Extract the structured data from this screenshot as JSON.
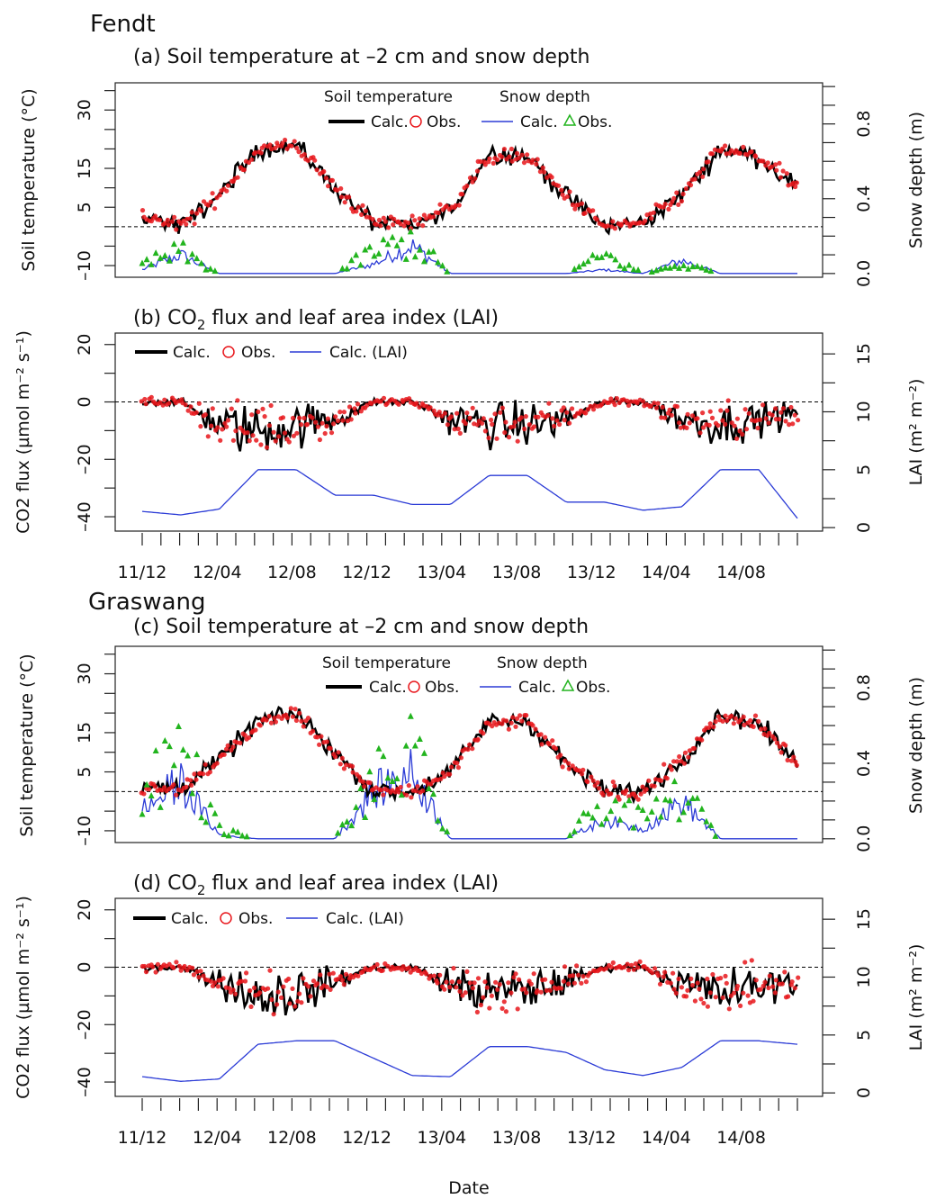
{
  "figure": {
    "xlabel": "Date",
    "x_ticks": [
      "11/12",
      "12/04",
      "12/08",
      "12/12",
      "13/04",
      "13/08",
      "13/12",
      "14/04",
      "14/08"
    ],
    "x_range": [
      "2011-12",
      "2014-11"
    ]
  },
  "colors": {
    "calc": "#000000",
    "obs_temp": "#e8161b",
    "snow_calc": "#2b3bd6",
    "snow_obs": "#22b41e",
    "lai": "#2b3bd6",
    "zero_line": "#000000"
  },
  "panels": [
    {
      "site": "Fendt",
      "title": "(a) Soil temperature at –2 cm and snow depth",
      "ylabel_left": "Soil temperature (°C)",
      "ylabel_right": "Snow depth (m)",
      "left_ticks": [
        "–10",
        "5",
        "15",
        "30"
      ],
      "right_ticks": [
        "0.0",
        "0.4",
        "0.8"
      ],
      "legend": {
        "h1": "Soil temperature",
        "h2": "Snow depth",
        "calc": "Calc.",
        "obs": "Obs.",
        "calc2": "Calc.",
        "obs2": "Obs."
      }
    },
    {
      "site": "",
      "title": "(b) CO",
      "title_sub": "2",
      "title_rest": " flux and leaf area index (LAI)",
      "ylabel_left": "CO2 flux (µmol m⁻² s⁻¹)",
      "ylabel_right": "LAI (m² m⁻²)",
      "left_ticks": [
        "–40",
        "–20",
        "0",
        "20"
      ],
      "right_ticks": [
        "0",
        "5",
        "10",
        "15"
      ],
      "legend": {
        "calc": "Calc.",
        "obs": "Obs.",
        "lai": "Calc. (LAI)"
      }
    },
    {
      "site": "Graswang",
      "title": "(c) Soil temperature at –2 cm and snow depth",
      "ylabel_left": "Soil temperature (°C)",
      "ylabel_right": "Snow depth (m)",
      "left_ticks": [
        "–10",
        "5",
        "15",
        "30"
      ],
      "right_ticks": [
        "0.0",
        "0.4",
        "0.8"
      ],
      "legend": {
        "h1": "Soil temperature",
        "h2": "Snow depth",
        "calc": "Calc.",
        "obs": "Obs.",
        "calc2": "Calc.",
        "obs2": "Obs."
      }
    },
    {
      "site": "",
      "title": "(d) CO",
      "title_sub": "2",
      "title_rest": " flux and leaf area index (LAI)",
      "ylabel_left": "CO2 flux (µmol m⁻² s⁻¹)",
      "ylabel_right": "LAI (m² m⁻²)",
      "left_ticks": [
        "–40",
        "–20",
        "0",
        "20"
      ],
      "right_ticks": [
        "0",
        "5",
        "10",
        "15"
      ],
      "legend": {
        "calc": "Calc.",
        "obs": "Obs.",
        "lai": "Calc. (LAI)"
      }
    }
  ],
  "chart_data": [
    {
      "type": "line",
      "title": "(a) Soil temperature at –2 cm and snow depth",
      "site": "Fendt",
      "x": [
        "2011-12",
        "2012-02",
        "2012-04",
        "2012-06",
        "2012-08",
        "2012-10",
        "2012-12",
        "2013-02",
        "2013-04",
        "2013-06",
        "2013-08",
        "2013-10",
        "2013-12",
        "2014-02",
        "2014-04",
        "2014-06",
        "2014-08",
        "2014-10"
      ],
      "ylim_left": [
        -10,
        35
      ],
      "ylim_right": [
        0,
        1.0
      ],
      "series": [
        {
          "name": "Soil temperature Calc.",
          "axis": "left",
          "values": [
            3,
            0,
            8,
            20,
            21,
            10,
            1,
            0,
            4,
            19,
            18,
            8,
            0,
            1,
            8,
            20,
            18,
            10
          ]
        },
        {
          "name": "Soil temperature Obs.",
          "axis": "left",
          "values": [
            3,
            0,
            8,
            20,
            21,
            10,
            1,
            1,
            5,
            18,
            18,
            8,
            0,
            1,
            8,
            20,
            18,
            10
          ]
        },
        {
          "name": "Snow depth Calc.",
          "axis": "right",
          "values": [
            0.02,
            0.1,
            0,
            0,
            0,
            0,
            0.05,
            0.15,
            0,
            0,
            0,
            0,
            0.02,
            0,
            0.07,
            0,
            0,
            0
          ]
        },
        {
          "name": "Snow depth Obs.",
          "axis": "right",
          "values": [
            0.05,
            0.12,
            0,
            0,
            0,
            0,
            0.12,
            0.18,
            0,
            0,
            0,
            0,
            0.1,
            0,
            0.05,
            0,
            0,
            0
          ]
        }
      ]
    },
    {
      "type": "line",
      "title": "(b) CO2 flux and leaf area index (LAI)",
      "site": "Fendt",
      "x": [
        "2011-12",
        "2012-02",
        "2012-04",
        "2012-06",
        "2012-08",
        "2012-10",
        "2012-12",
        "2013-02",
        "2013-04",
        "2013-06",
        "2013-08",
        "2013-10",
        "2013-12",
        "2014-02",
        "2014-04",
        "2014-06",
        "2014-08",
        "2014-10"
      ],
      "ylim_left": [
        -45,
        22
      ],
      "ylim_right": [
        0,
        16
      ],
      "series": [
        {
          "name": "Calc.",
          "axis": "left",
          "values": [
            0,
            0,
            -8,
            -10,
            -8,
            -6,
            0,
            0,
            -6,
            -8,
            -8,
            -6,
            0,
            0,
            -6,
            -8,
            -6,
            -4
          ]
        },
        {
          "name": "Obs.",
          "axis": "left",
          "values": [
            0,
            0,
            -8,
            -9,
            -8,
            -6,
            0,
            0,
            -6,
            -7,
            -7,
            -5,
            0,
            0,
            -6,
            -7,
            -6,
            -5
          ]
        },
        {
          "name": "Calc. (LAI)",
          "axis": "right",
          "values": [
            1.4,
            1.1,
            1.6,
            5.0,
            5.0,
            2.8,
            2.8,
            2.0,
            2.0,
            4.5,
            4.5,
            2.2,
            2.2,
            1.5,
            1.8,
            5.0,
            5.0,
            0.8
          ]
        }
      ]
    },
    {
      "type": "line",
      "title": "(c) Soil temperature at –2 cm and snow depth",
      "site": "Graswang",
      "x": [
        "2011-12",
        "2012-02",
        "2012-04",
        "2012-06",
        "2012-08",
        "2012-10",
        "2012-12",
        "2013-02",
        "2013-04",
        "2013-06",
        "2013-08",
        "2013-10",
        "2013-12",
        "2014-02",
        "2014-04",
        "2014-06",
        "2014-08",
        "2014-10"
      ],
      "ylim_left": [
        -10,
        35
      ],
      "ylim_right": [
        0,
        1.0
      ],
      "series": [
        {
          "name": "Soil temperature Calc.",
          "axis": "left",
          "values": [
            1,
            1,
            8,
            18,
            20,
            10,
            0,
            0,
            5,
            18,
            18,
            7,
            0,
            0,
            8,
            20,
            17,
            7
          ]
        },
        {
          "name": "Soil temperature Obs.",
          "axis": "left",
          "values": [
            1,
            1,
            8,
            17,
            20,
            10,
            0,
            0,
            5,
            17,
            18,
            7,
            0,
            0,
            8,
            19,
            17,
            7
          ]
        },
        {
          "name": "Snow depth Calc.",
          "axis": "right",
          "values": [
            0.15,
            0.3,
            0.02,
            0,
            0,
            0,
            0.25,
            0.35,
            0,
            0,
            0,
            0,
            0.1,
            0.05,
            0.2,
            0,
            0,
            0
          ]
        },
        {
          "name": "Snow depth Obs.",
          "axis": "right",
          "values": [
            0.3,
            0.5,
            0.05,
            0,
            0,
            0,
            0.3,
            0.45,
            0,
            0,
            0,
            0,
            0.2,
            0.1,
            0.25,
            0,
            0,
            0
          ]
        }
      ]
    },
    {
      "type": "line",
      "title": "(d) CO2 flux and leaf area index (LAI)",
      "site": "Graswang",
      "x": [
        "2011-12",
        "2012-02",
        "2012-04",
        "2012-06",
        "2012-08",
        "2012-10",
        "2012-12",
        "2013-02",
        "2013-04",
        "2013-06",
        "2013-08",
        "2013-10",
        "2013-12",
        "2014-02",
        "2014-04",
        "2014-06",
        "2014-08",
        "2014-10"
      ],
      "ylim_left": [
        -45,
        22
      ],
      "ylim_right": [
        0,
        16
      ],
      "series": [
        {
          "name": "Calc.",
          "axis": "left",
          "values": [
            0,
            0,
            -5,
            -10,
            -9,
            -5,
            0,
            0,
            -6,
            -9,
            -8,
            -5,
            0,
            0,
            -6,
            -9,
            -7,
            -5
          ]
        },
        {
          "name": "Obs.",
          "axis": "left",
          "values": [
            0,
            0,
            -5,
            -9,
            -9,
            -5,
            0,
            0,
            -6,
            -8,
            -8,
            -5,
            0,
            0,
            -6,
            -8,
            -7,
            -5
          ]
        },
        {
          "name": "Calc. (LAI)",
          "axis": "right",
          "values": [
            1.4,
            1.0,
            1.2,
            4.2,
            4.5,
            4.5,
            3.0,
            1.5,
            1.4,
            4.0,
            4.0,
            3.5,
            2.0,
            1.5,
            2.2,
            4.5,
            4.5,
            4.2
          ]
        }
      ]
    }
  ]
}
